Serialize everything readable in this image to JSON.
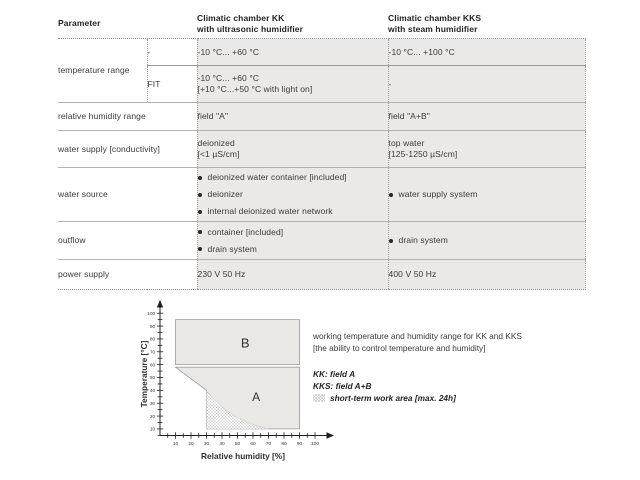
{
  "table": {
    "header": {
      "parameter": "Parameter",
      "kk_line1": "Climatic chamber KK",
      "kk_line2": "with ultrasonic humidifier",
      "kks_line1": "Climatic chamber KKS",
      "kks_line2": "with steam humidifier"
    },
    "rows": {
      "temperature_range": {
        "param": "temperature range",
        "sub1_label": "-",
        "sub1_kk": "-10 °C... +60 °C",
        "sub1_kks": "-10 °C... +100 °C",
        "sub2_label": "FIT",
        "sub2_kk_line1": "-10 °C... +60 °C",
        "sub2_kk_line2": "[+10 °C...+50 °C with light on]",
        "sub2_kks": "-"
      },
      "humidity": {
        "param": "relative humidity range",
        "kk": "field \"A\"",
        "kks": "field \"A+B\""
      },
      "water_supply": {
        "param": "water supply [conductivity]",
        "kk_line1": "deionized",
        "kk_line2": "[<1 µS/cm]",
        "kks_line1": "top water",
        "kks_line2": "[125-1250 µS/cm]"
      },
      "water_source": {
        "param": "water source",
        "kk_bullets": [
          "deionized water container [included]",
          "deionizer",
          "internal deionized water network"
        ],
        "kks_bullets": [
          "water supply system"
        ]
      },
      "outflow": {
        "param": "outflow",
        "kk_bullets": [
          "container [included]",
          "drain system"
        ],
        "kks_bullets": [
          "drain system"
        ]
      },
      "power_supply": {
        "param": "power supply",
        "kk": "230 V 50 Hz",
        "kks": "400 V 50 Hz"
      }
    }
  },
  "chart_data": {
    "type": "area",
    "title": "",
    "xlabel": "Relative humidity [%]",
    "ylabel": "Temperature [°C]",
    "xlim": [
      0,
      105
    ],
    "ylim": [
      0,
      105
    ],
    "tick_step_minor": 5,
    "labeled_ticks": [
      10,
      20,
      30,
      40,
      50,
      60,
      70,
      80,
      90,
      100
    ],
    "regions": [
      {
        "name": "B",
        "label": "B",
        "type": "polygon",
        "points": [
          [
            10,
            60
          ],
          [
            90,
            60
          ],
          [
            90,
            95
          ],
          [
            10,
            95
          ]
        ]
      },
      {
        "name": "A",
        "label": "A",
        "type": "polygon",
        "points": [
          [
            10,
            58
          ],
          [
            90,
            58
          ],
          [
            90,
            10
          ],
          [
            30,
            10
          ],
          [
            30,
            40
          ]
        ]
      },
      {
        "name": "short_term_work_area",
        "type": "curve_area",
        "curve": {
          "from": [
            30,
            40
          ],
          "control": [
            44,
            17
          ],
          "to": [
            70,
            10
          ]
        },
        "close_point": [
          30,
          10
        ]
      }
    ],
    "label_positions": {
      "B": [
        55,
        77
      ],
      "A": [
        62,
        35
      ]
    },
    "legend_position": "right"
  },
  "legend": {
    "line1": "working temperature and humidity range for KK and KKS",
    "line2": "[the ability to control temperature and humidity]",
    "kk": "KK: field A",
    "kks": "KKS: field A+B",
    "short_term": "short-term work area [max. 24h]"
  },
  "colors": {
    "cell_bg": "#eae9e7",
    "region_fill": "#e9e8e5",
    "region_stroke": "#9a9a9a",
    "axis": "#1f1f1f",
    "text": "#3a3a3a",
    "hatch": "#c9c9c9"
  }
}
